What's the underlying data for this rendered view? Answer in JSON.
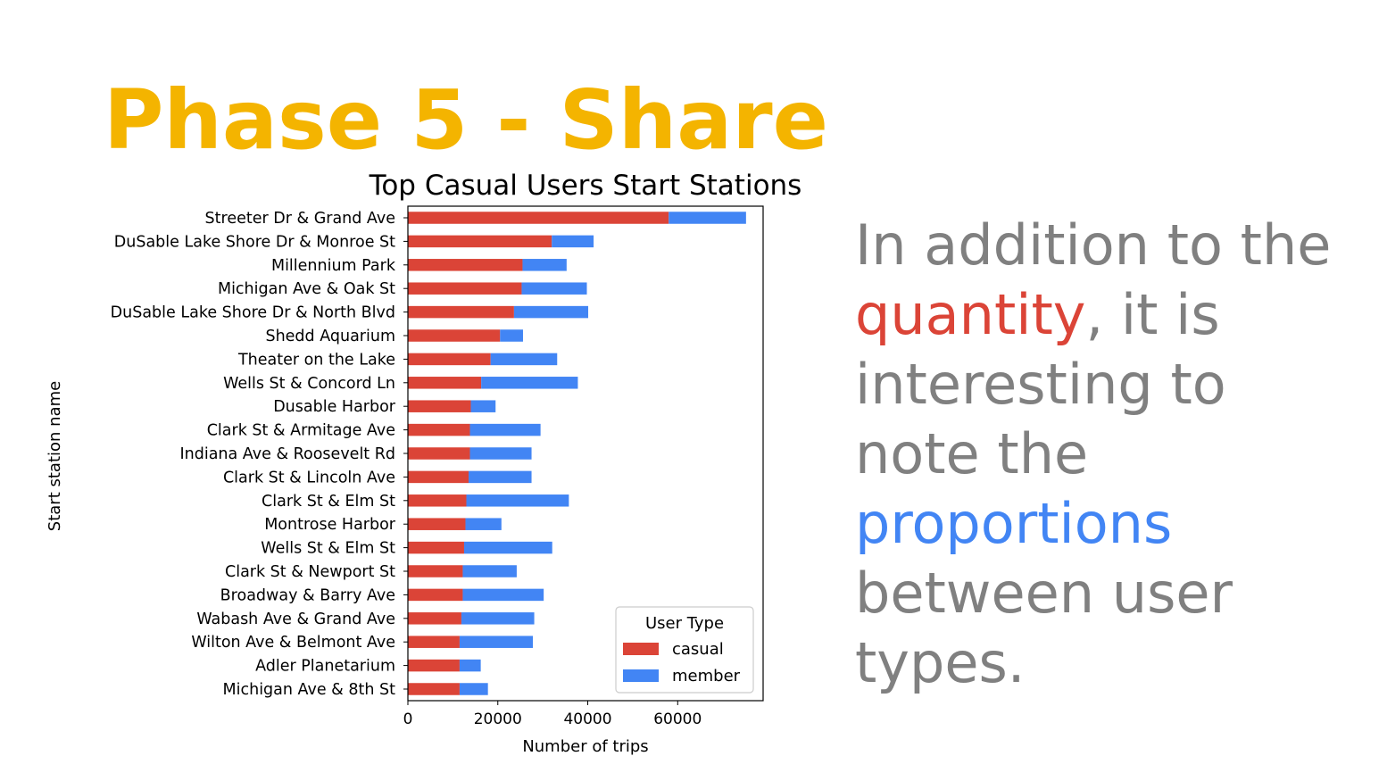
{
  "slide": {
    "title": "Phase 5 - Share",
    "title_color": "#f4b400",
    "text": {
      "part1": "In addition to the ",
      "highlight1": "quantity",
      "part2": ", it is interesting to note the ",
      "highlight2": "proportions",
      "part3": " between user types.",
      "text_color": "#808080",
      "highlight1_color": "#db4437",
      "highlight2_color": "#4285f4"
    }
  },
  "chart_data": {
    "type": "bar",
    "orientation": "horizontal",
    "stacked": true,
    "title": "Top Casual Users Start Stations",
    "xlabel": "Number of trips",
    "ylabel": "Start station name",
    "xlim": [
      0,
      79000
    ],
    "xticks": [
      0,
      20000,
      40000,
      60000
    ],
    "grid": false,
    "legend": {
      "title": "User Type",
      "placement": "lower-right"
    },
    "categories": [
      "Streeter Dr & Grand Ave",
      "DuSable Lake Shore Dr & Monroe St",
      "Millennium Park",
      "Michigan Ave & Oak St",
      "DuSable Lake Shore Dr & North Blvd",
      "Shedd Aquarium",
      "Theater on the Lake",
      "Wells St & Concord Ln",
      "Dusable Harbor",
      "Clark St & Armitage Ave",
      "Indiana Ave & Roosevelt Rd",
      "Clark St & Lincoln Ave",
      "Clark St & Elm St",
      "Montrose Harbor",
      "Wells St & Elm St",
      "Clark St & Newport St",
      "Broadway & Barry Ave",
      "Wabash Ave & Grand Ave",
      "Wilton Ave & Belmont Ave",
      "Adler Planetarium",
      "Michigan Ave & 8th St"
    ],
    "series": [
      {
        "name": "casual",
        "color": "#db4437",
        "values": [
          58000,
          32000,
          25500,
          25300,
          23600,
          20500,
          18400,
          16300,
          14000,
          13800,
          13800,
          13500,
          13000,
          12800,
          12500,
          12200,
          12200,
          11900,
          11500,
          11500,
          11500
        ]
      },
      {
        "name": "member",
        "color": "#4285f4",
        "values": [
          17200,
          9300,
          9800,
          14500,
          16500,
          5100,
          14800,
          21500,
          5500,
          15700,
          13700,
          14000,
          22800,
          8000,
          19600,
          12000,
          18000,
          16200,
          16300,
          4700,
          6300
        ]
      }
    ]
  }
}
